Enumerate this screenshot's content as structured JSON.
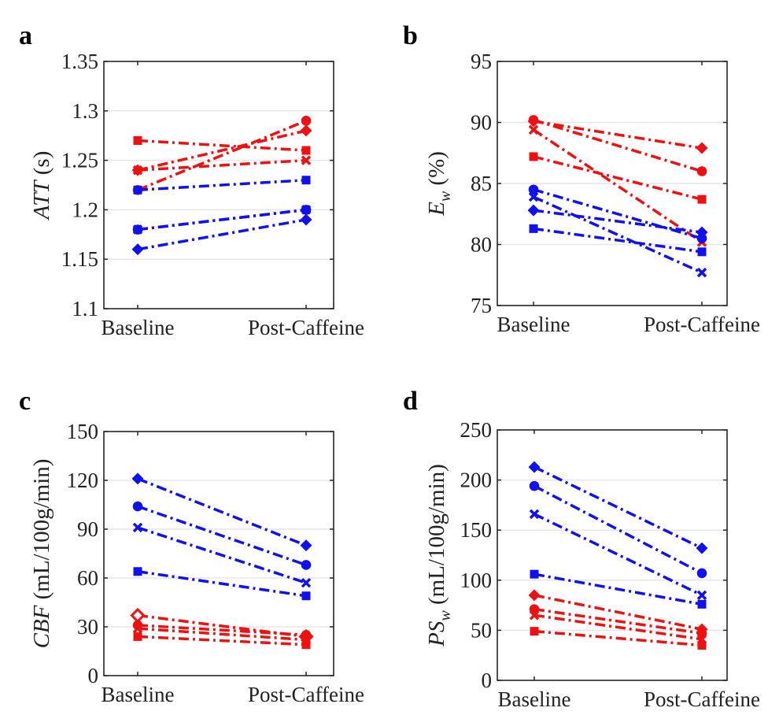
{
  "colors": {
    "red": "#ee1111",
    "blue": "#1111ee",
    "grid": "#e6e6e6",
    "axis": "#262626"
  },
  "chart_data": [
    {
      "panel": "a",
      "type": "line",
      "categories": [
        "Baseline",
        "Post-Caffeine"
      ],
      "ylabel": {
        "italic": "ATT",
        "rest": " (s)"
      },
      "ylim": [
        1.1,
        1.35
      ],
      "yticks": [
        1.1,
        1.15,
        1.2,
        1.25,
        1.3,
        1.35
      ],
      "ytick_labels": [
        "1.1",
        "1.15",
        "1.2",
        "1.25",
        "1.3",
        "1.35"
      ],
      "grid": true,
      "series": [
        {
          "color": "red",
          "marker": "square",
          "values": [
            1.27,
            1.26
          ]
        },
        {
          "color": "red",
          "marker": "diamond",
          "values": [
            1.24,
            1.28
          ]
        },
        {
          "color": "red",
          "marker": "x",
          "values": [
            1.24,
            1.25
          ]
        },
        {
          "color": "red",
          "marker": "circle",
          "values": [
            1.22,
            1.29
          ]
        },
        {
          "color": "blue",
          "marker": "square",
          "values": [
            1.22,
            1.23
          ]
        },
        {
          "color": "blue",
          "marker": "circle",
          "values": [
            1.18,
            1.2
          ]
        },
        {
          "color": "blue",
          "marker": "x",
          "values": [
            1.18,
            1.2
          ]
        },
        {
          "color": "blue",
          "marker": "diamond",
          "values": [
            1.16,
            1.19
          ]
        }
      ]
    },
    {
      "panel": "b",
      "type": "line",
      "categories": [
        "Baseline",
        "Post-Caffeine"
      ],
      "ylabel": {
        "italic": "E",
        "sub": "w",
        "rest": " (%)"
      },
      "ylim": [
        75,
        95
      ],
      "yticks": [
        75,
        80,
        85,
        90,
        95
      ],
      "ytick_labels": [
        "75",
        "80",
        "85",
        "90",
        "95"
      ],
      "grid": true,
      "series": [
        {
          "color": "red",
          "marker": "diamond",
          "values": [
            90.1,
            87.9
          ]
        },
        {
          "color": "red",
          "marker": "circle",
          "values": [
            90.2,
            86.0
          ]
        },
        {
          "color": "red",
          "marker": "x",
          "values": [
            89.4,
            80.2
          ]
        },
        {
          "color": "red",
          "marker": "square",
          "values": [
            87.2,
            83.7
          ]
        },
        {
          "color": "blue",
          "marker": "circle",
          "values": [
            84.5,
            80.5
          ]
        },
        {
          "color": "blue",
          "marker": "x",
          "values": [
            83.9,
            77.7
          ]
        },
        {
          "color": "blue",
          "marker": "diamond",
          "values": [
            82.8,
            81.0
          ]
        },
        {
          "color": "blue",
          "marker": "square",
          "values": [
            81.3,
            79.4
          ]
        }
      ]
    },
    {
      "panel": "c",
      "type": "line",
      "categories": [
        "Baseline",
        "Post-Caffeine"
      ],
      "ylabel": {
        "italic": "CBF",
        "rest": " (mL/100g/min)"
      },
      "ylim": [
        0,
        150
      ],
      "yticks": [
        0,
        30,
        60,
        90,
        120,
        150
      ],
      "ytick_labels": [
        "0",
        "30",
        "60",
        "90",
        "120",
        "150"
      ],
      "grid": true,
      "series": [
        {
          "color": "blue",
          "marker": "diamond",
          "values": [
            121,
            80
          ]
        },
        {
          "color": "blue",
          "marker": "circle",
          "values": [
            104,
            68
          ]
        },
        {
          "color": "blue",
          "marker": "x",
          "values": [
            91,
            57
          ]
        },
        {
          "color": "blue",
          "marker": "square",
          "values": [
            64,
            49
          ]
        },
        {
          "color": "red",
          "marker": "diamond-open",
          "values": [
            37,
            24
          ]
        },
        {
          "color": "red",
          "marker": "circle",
          "values": [
            31,
            25
          ]
        },
        {
          "color": "red",
          "marker": "x",
          "values": [
            29,
            22
          ]
        },
        {
          "color": "red",
          "marker": "square",
          "values": [
            24,
            19
          ]
        }
      ]
    },
    {
      "panel": "d",
      "type": "line",
      "categories": [
        "Baseline",
        "Post-Caffeine"
      ],
      "ylabel": {
        "italic": "PS",
        "sub": "w",
        "rest": " (mL/100g/min)"
      },
      "ylim": [
        0,
        250
      ],
      "yticks": [
        0,
        50,
        100,
        150,
        200,
        250
      ],
      "ytick_labels": [
        "0",
        "50",
        "100",
        "150",
        "200",
        "250"
      ],
      "grid": true,
      "series": [
        {
          "color": "blue",
          "marker": "diamond",
          "values": [
            213,
            132
          ]
        },
        {
          "color": "blue",
          "marker": "circle",
          "values": [
            194,
            107
          ]
        },
        {
          "color": "blue",
          "marker": "x",
          "values": [
            166,
            85
          ]
        },
        {
          "color": "blue",
          "marker": "square",
          "values": [
            106,
            76
          ]
        },
        {
          "color": "red",
          "marker": "diamond",
          "values": [
            85,
            51
          ]
        },
        {
          "color": "red",
          "marker": "circle",
          "values": [
            71,
            47
          ]
        },
        {
          "color": "red",
          "marker": "x",
          "values": [
            65,
            41
          ]
        },
        {
          "color": "red",
          "marker": "square",
          "values": [
            49,
            35
          ]
        }
      ]
    }
  ]
}
